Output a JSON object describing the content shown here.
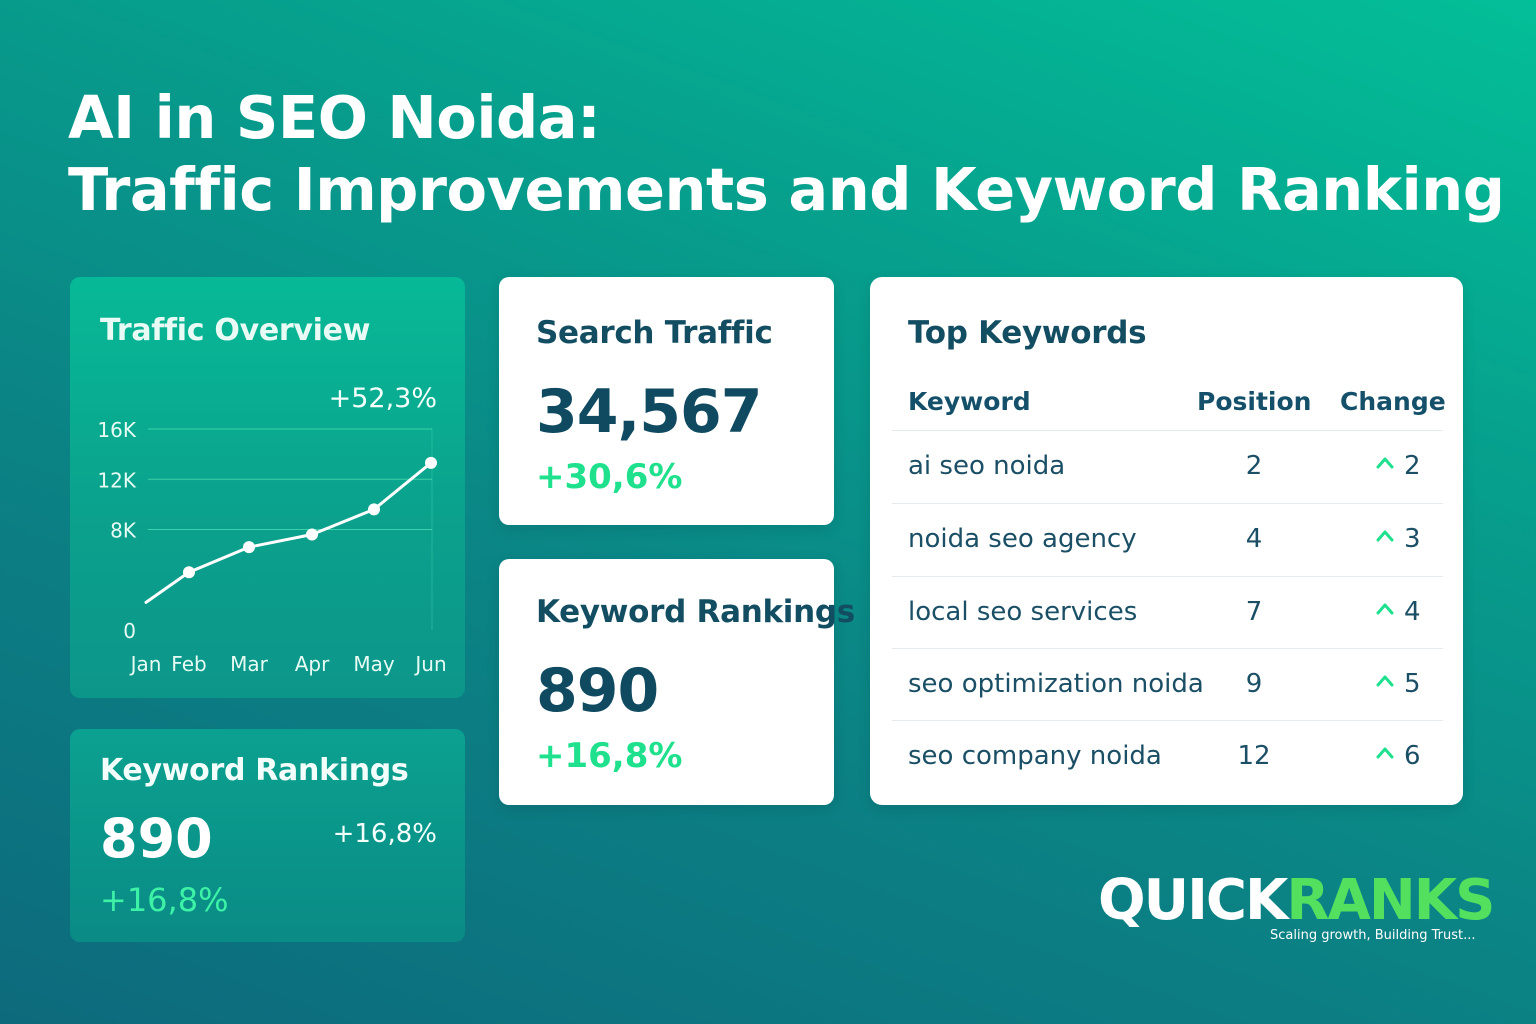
{
  "title": {
    "line1": "AI in SEO Noida:",
    "line2": "Traffic Improvements and Keyword Ranking"
  },
  "traffic_overview": {
    "title": "Traffic Overview",
    "growth": "+52,3%"
  },
  "chart_data": {
    "type": "line",
    "title": "Traffic Overview",
    "categories": [
      "Jan",
      "Feb",
      "Mar",
      "Apr",
      "May",
      "Jun"
    ],
    "y_ticks": [
      "0",
      "8K",
      "12K",
      "16K"
    ],
    "ylim": [
      0,
      16000
    ],
    "series": [
      {
        "values": [
          2200,
          4600,
          6600,
          7600,
          9600,
          13300
        ]
      }
    ],
    "annotation": "+52,3%",
    "grid": true,
    "line_color": "#ffffff"
  },
  "keyword_rankings_small": {
    "title": "Keyword Rankings",
    "value": "890",
    "change_right": "+16,8%",
    "change": "+16,8%"
  },
  "search_traffic": {
    "title": "Search Traffic",
    "value": "34,567",
    "change": "+30,6%"
  },
  "keyword_rankings": {
    "title": "Keyword Rankings",
    "value": "890",
    "change": "+16,8%"
  },
  "top_keywords": {
    "title": "Top Keywords",
    "headers": {
      "keyword": "Keyword",
      "position": "Position",
      "change": "Change"
    },
    "rows": [
      {
        "keyword": "ai seo noida",
        "position": "2",
        "change": "2"
      },
      {
        "keyword": "noida seo agency",
        "position": "4",
        "change": "3"
      },
      {
        "keyword": "local seo services",
        "position": "7",
        "change": "4"
      },
      {
        "keyword": "seo optimization noida",
        "position": "9",
        "change": "5"
      },
      {
        "keyword": "seo company noida",
        "position": "12",
        "change": "6"
      }
    ],
    "up_icon": "chevron-up-icon",
    "up_color": "#1fe08d"
  },
  "logo": {
    "part1": "QUICK",
    "part2": "RANKS",
    "tagline": "Scaling growth, Building Trust..."
  },
  "colors": {
    "accent_green": "#1fe08d",
    "dark_text": "#124d62",
    "logo_green": "#53e05e"
  }
}
